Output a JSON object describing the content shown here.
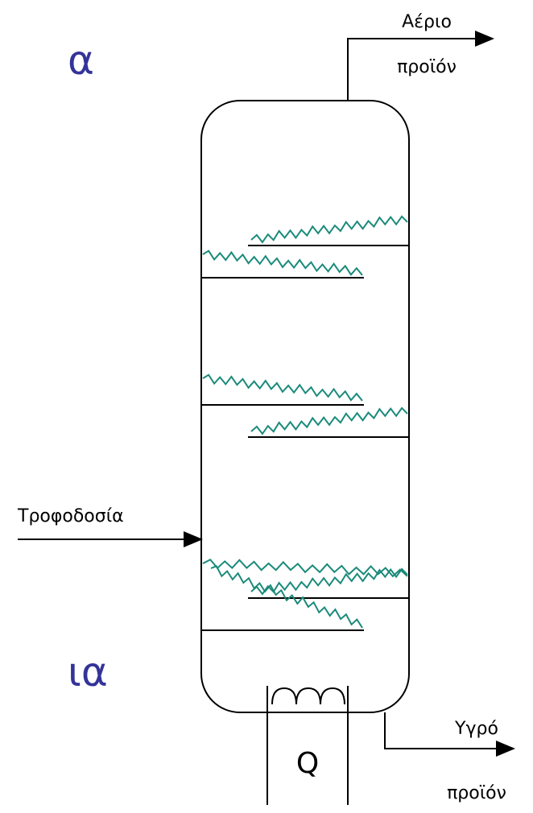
{
  "side_text_top": "α",
  "side_text_bottom": "ια",
  "gas_product": {
    "line1": "Αέριο",
    "line2": "προϊόν"
  },
  "feed": "Τροφοδοσία",
  "heat": "Q",
  "liquid_product": {
    "line1": "Υγρό",
    "line2": "προϊόν"
  }
}
